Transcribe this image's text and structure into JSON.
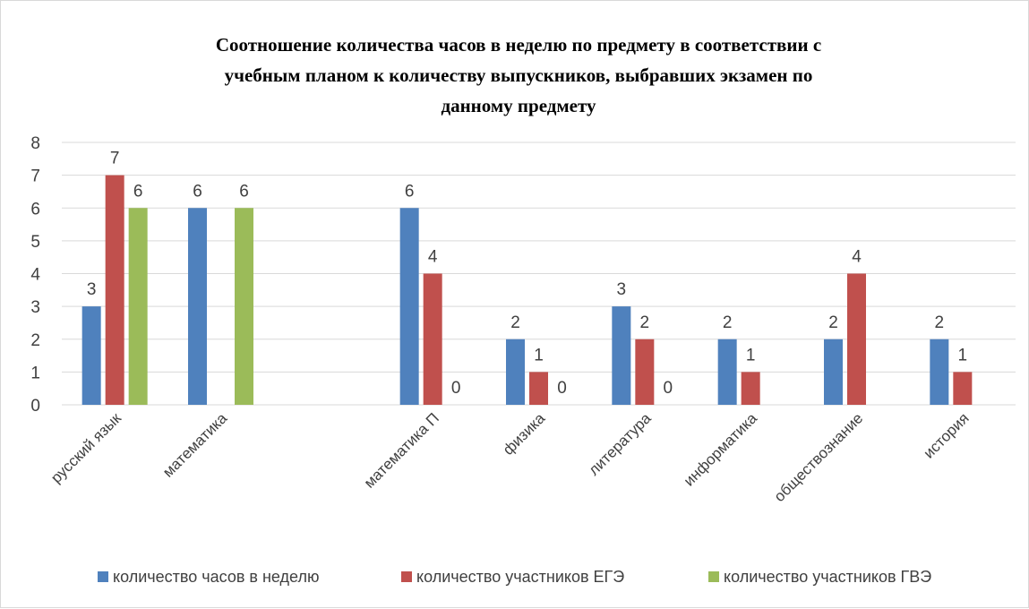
{
  "chart_data": {
    "type": "bar",
    "title_lines": [
      "Соотношение количества часов в неделю по предмету в соответствии с",
      "учебным планом к количеству выпускников, выбравших экзамен по",
      "данному предмету"
    ],
    "categories": [
      "русский язык",
      "математика",
      "",
      "математика П",
      "физика",
      "литература",
      "информатика",
      "обществознание",
      "история"
    ],
    "series": [
      {
        "name": "количество часов в неделю",
        "color": "#4f81bd",
        "values": [
          3,
          6,
          null,
          6,
          2,
          3,
          2,
          2,
          2
        ]
      },
      {
        "name": "количество участников ЕГЭ",
        "color": "#c0504d",
        "values": [
          7,
          null,
          null,
          4,
          1,
          2,
          1,
          4,
          1
        ]
      },
      {
        "name": "количество участников ГВЭ",
        "color": "#9bbb59",
        "values": [
          6,
          6,
          null,
          0,
          0,
          0,
          null,
          null,
          null
        ]
      }
    ],
    "ylim": [
      0,
      8
    ],
    "yticks": [
      0,
      1,
      2,
      3,
      4,
      5,
      6,
      7,
      8
    ],
    "grid": true,
    "legend_position": "bottom",
    "gridline_color": "#d9d9d9"
  }
}
